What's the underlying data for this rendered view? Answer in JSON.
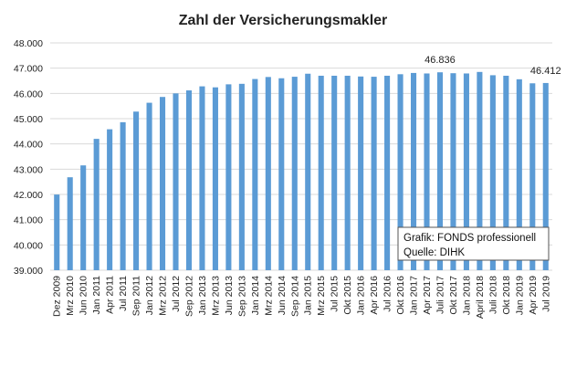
{
  "chart_data": {
    "type": "bar",
    "title": "Zahl der Versicherungsmakler",
    "xlabel": "",
    "ylabel": "",
    "ylim": [
      39000,
      48000
    ],
    "ytick_values": [
      39000,
      40000,
      41000,
      42000,
      43000,
      44000,
      45000,
      46000,
      47000,
      48000
    ],
    "ytick_labels": [
      "39.000",
      "40.000",
      "41.000",
      "42.000",
      "43.000",
      "44.000",
      "45.000",
      "46.000",
      "47.000",
      "48.000"
    ],
    "grid": true,
    "legend": "none",
    "bar_color": "#5B9BD5",
    "categories": [
      "Dez 2009",
      "Mrz 2010",
      "Jun 2010",
      "Jan 2011",
      "Apr 2011",
      "Jul 2011",
      "Sep 2011",
      "Jan 2012",
      "Mrz 2012",
      "Jul 2012",
      "Sep 2012",
      "Jan 2013",
      "Mrz 2013",
      "Jun 2013",
      "Sep 2013",
      "Jan 2014",
      "Mrz 2014",
      "Jun 2014",
      "Sep 2014",
      "Jan 2015",
      "Mrz 2015",
      "Jul 2015",
      "Okt 2015",
      "Jan 2016",
      "Apr 2016",
      "Jul 2016",
      "Okt 2016",
      "Jan 2017",
      "Apr 2017",
      "Juli 2017",
      "Okt 2017",
      "Jan 2018",
      "April 2018",
      "Juli 2018",
      "Okt 2018",
      "Jan 2019",
      "Apr 2019",
      "Jul 2019"
    ],
    "values": [
      41995,
      42680,
      43150,
      44200,
      44580,
      44860,
      45280,
      45630,
      45860,
      46000,
      46120,
      46280,
      46240,
      46360,
      46380,
      46570,
      46650,
      46600,
      46660,
      46780,
      46700,
      46700,
      46700,
      46670,
      46660,
      46700,
      46760,
      46810,
      46790,
      46836,
      46800,
      46790,
      46850,
      46720,
      46700,
      46560,
      46400,
      46412
    ],
    "data_labels": [
      {
        "index": 29,
        "text": "46.836"
      },
      {
        "index": 37,
        "text": "46.412"
      }
    ],
    "annotation": {
      "line1": "Grafik: FONDS professionell",
      "line2": "Quelle: DIHK"
    }
  }
}
